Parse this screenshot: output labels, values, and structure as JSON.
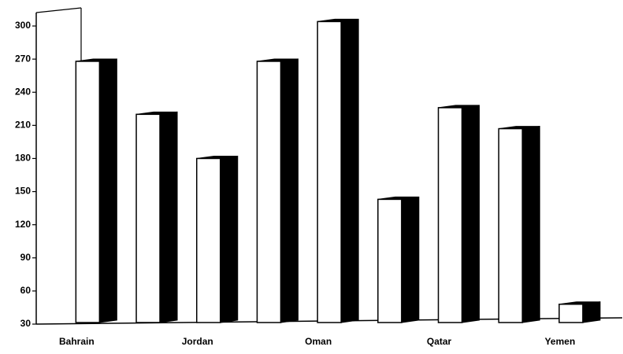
{
  "chart_data": {
    "type": "bar",
    "categories": [
      "Bahrain",
      null,
      "Jordan",
      null,
      "Oman",
      null,
      "Qatar",
      null,
      "Yemen"
    ],
    "values": [
      268,
      220,
      180,
      268,
      304,
      143,
      226,
      207,
      48
    ],
    "color": "#ffffff",
    "side_color": "#000000",
    "ylim": [
      30,
      310
    ],
    "yticks": [
      30,
      60,
      90,
      120,
      150,
      180,
      210,
      240,
      270,
      300
    ]
  }
}
